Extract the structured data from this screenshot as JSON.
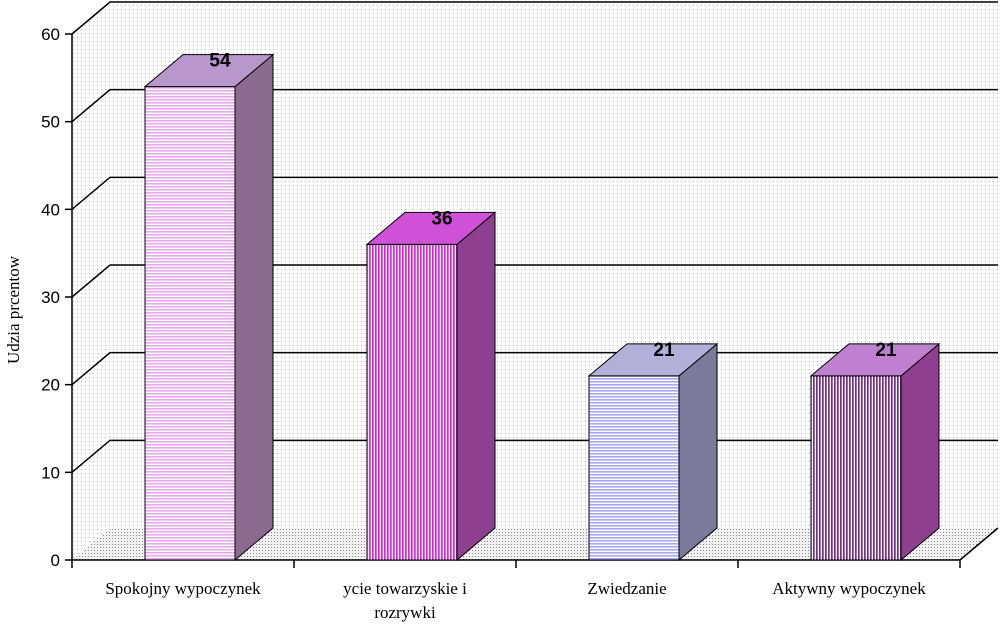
{
  "chart_data": {
    "type": "bar",
    "ylabel": "Udzia  prcentow",
    "ylim": [
      0,
      60
    ],
    "yticks": [
      0,
      10,
      20,
      30,
      40,
      50,
      60
    ],
    "grid": true,
    "categories": [
      [
        "Spokojny wypoczynek"
      ],
      [
        "ycie towarzyskie i",
        "rozrywki"
      ],
      [
        "Zwiedzanie"
      ],
      [
        "Aktywny wypoczynek"
      ]
    ],
    "values": [
      54,
      36,
      21,
      21
    ],
    "colors": [
      {
        "front": "#e8a8f0",
        "side": "#8a6a8e",
        "top": "#b898cc",
        "pattern": "h"
      },
      {
        "front": "#e020e0",
        "side": "#8e3f8e",
        "top": "#d050d8",
        "pattern": "v"
      },
      {
        "front": "#a8a8f8",
        "side": "#7a7a9a",
        "top": "#b0b0d8",
        "pattern": "h"
      },
      {
        "front": "#7a2a8a",
        "side": "#8e3f8e",
        "top": "#c080d0",
        "pattern": "v"
      }
    ]
  }
}
